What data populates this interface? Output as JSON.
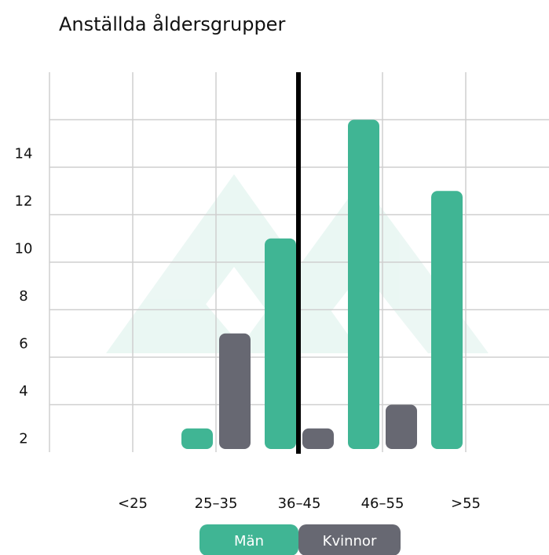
{
  "chart_data": {
    "type": "bar",
    "title": "Anställda åldersgrupper",
    "categories": [
      "<25",
      "25–35",
      "36–45",
      "46–55",
      ">55"
    ],
    "series": [
      {
        "name": "Män",
        "color": "#40b594",
        "values": [
          null,
          1,
          9,
          14,
          11
        ]
      },
      {
        "name": "Kvinnor",
        "color": "#676872",
        "values": [
          null,
          5,
          1,
          2,
          null
        ]
      }
    ],
    "ylim": [
      0,
      16
    ],
    "yticks": [
      2,
      4,
      6,
      8,
      10,
      12,
      14
    ],
    "grid": true
  }
}
